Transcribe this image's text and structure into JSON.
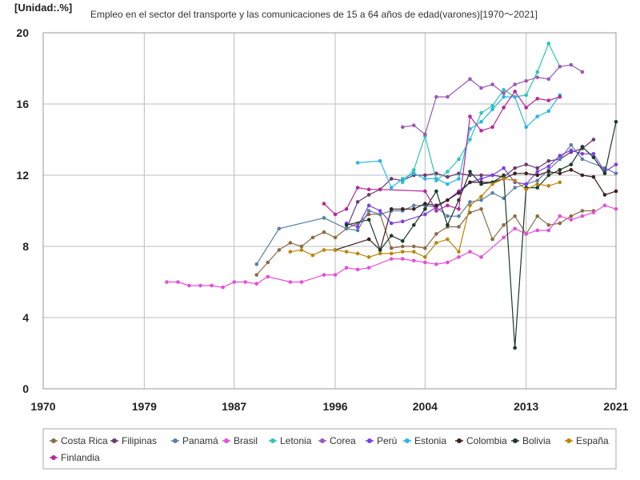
{
  "unit_label": "[Unidad:.%]",
  "chart_data": {
    "type": "line",
    "title": "Empleo en el sector del transporte y las comunicaciones de 15 a 64 años de edad(varones)[1970～2021]",
    "xlabel": "",
    "ylabel": "",
    "xlim": [
      1970,
      2021
    ],
    "ylim": [
      0,
      20
    ],
    "x_ticks": [
      1970,
      1979,
      1987,
      1996,
      2004,
      2013,
      2021
    ],
    "y_ticks": [
      0,
      4,
      8,
      12,
      16,
      20
    ],
    "grid": true,
    "legend_position": "bottom",
    "series": [
      {
        "name": "Costa Rica",
        "color": "#8b6b47",
        "points": [
          [
            1989,
            6.4
          ],
          [
            1990,
            7.1
          ],
          [
            1991,
            7.8
          ],
          [
            1992,
            8.2
          ],
          [
            1993,
            8.0
          ],
          [
            1994,
            8.5
          ],
          [
            1995,
            8.8
          ],
          [
            1996,
            8.5
          ],
          [
            1997,
            9.0
          ],
          [
            1998,
            9.3
          ],
          [
            1999,
            9.8
          ],
          [
            2000,
            9.8
          ],
          [
            2001,
            7.9
          ],
          [
            2002,
            8.0
          ],
          [
            2003,
            8.0
          ],
          [
            2004,
            7.9
          ],
          [
            2005,
            8.7
          ],
          [
            2006,
            9.1
          ],
          [
            2007,
            9.1
          ],
          [
            2008,
            9.9
          ],
          [
            2009,
            10.1
          ],
          [
            2010,
            8.4
          ],
          [
            2011,
            9.2
          ],
          [
            2012,
            9.7
          ],
          [
            2013,
            8.7
          ],
          [
            2014,
            9.7
          ],
          [
            2015,
            9.2
          ],
          [
            2016,
            9.3
          ],
          [
            2017,
            9.7
          ],
          [
            2018,
            10.0
          ],
          [
            2019,
            10.0
          ]
        ]
      },
      {
        "name": "Filipinas",
        "color": "#6b3a6b",
        "points": [
          [
            1997,
            9.0
          ],
          [
            1998,
            10.5
          ],
          [
            1999,
            10.9
          ],
          [
            2000,
            11.2
          ],
          [
            2001,
            11.8
          ],
          [
            2002,
            11.7
          ],
          [
            2003,
            12.0
          ],
          [
            2004,
            12.0
          ],
          [
            2005,
            12.1
          ],
          [
            2006,
            11.9
          ],
          [
            2007,
            12.1
          ],
          [
            2008,
            12.0
          ],
          [
            2009,
            12.0
          ],
          [
            2010,
            12.0
          ],
          [
            2011,
            11.9
          ],
          [
            2012,
            12.4
          ],
          [
            2013,
            12.6
          ],
          [
            2014,
            12.4
          ],
          [
            2015,
            12.8
          ],
          [
            2016,
            12.9
          ],
          [
            2017,
            13.3
          ],
          [
            2018,
            13.5
          ],
          [
            2019,
            14.0
          ]
        ]
      },
      {
        "name": "Panamá",
        "color": "#5b7fa6",
        "points": [
          [
            1989,
            7.0
          ],
          [
            1991,
            9.0
          ],
          [
            1995,
            9.6
          ],
          [
            1997,
            9.0
          ],
          [
            1998,
            8.9
          ],
          [
            1999,
            10.0
          ],
          [
            2000,
            9.8
          ],
          [
            2001,
            10.0
          ],
          [
            2002,
            10.0
          ],
          [
            2003,
            10.3
          ],
          [
            2004,
            10.3
          ],
          [
            2005,
            10.2
          ],
          [
            2006,
            9.7
          ],
          [
            2007,
            9.7
          ],
          [
            2008,
            10.5
          ],
          [
            2009,
            10.6
          ],
          [
            2010,
            11.0
          ],
          [
            2011,
            10.7
          ],
          [
            2012,
            11.3
          ],
          [
            2013,
            11.5
          ],
          [
            2014,
            11.7
          ],
          [
            2015,
            12.3
          ],
          [
            2016,
            12.9
          ],
          [
            2017,
            13.7
          ],
          [
            2018,
            12.9
          ],
          [
            2020,
            12.4
          ],
          [
            2021,
            12.1
          ]
        ]
      },
      {
        "name": "Brasil",
        "color": "#e64fd6",
        "points": [
          [
            1981,
            6.0
          ],
          [
            1982,
            6.0
          ],
          [
            1983,
            5.8
          ],
          [
            1984,
            5.8
          ],
          [
            1985,
            5.8
          ],
          [
            1986,
            5.7
          ],
          [
            1987,
            6.0
          ],
          [
            1988,
            6.0
          ],
          [
            1989,
            5.9
          ],
          [
            1990,
            6.3
          ],
          [
            1992,
            6.0
          ],
          [
            1993,
            6.0
          ],
          [
            1995,
            6.4
          ],
          [
            1996,
            6.4
          ],
          [
            1997,
            6.8
          ],
          [
            1998,
            6.7
          ],
          [
            1999,
            6.8
          ],
          [
            2001,
            7.3
          ],
          [
            2002,
            7.3
          ],
          [
            2003,
            7.2
          ],
          [
            2004,
            7.1
          ],
          [
            2005,
            7.0
          ],
          [
            2006,
            7.1
          ],
          [
            2007,
            7.4
          ],
          [
            2008,
            7.7
          ],
          [
            2009,
            7.4
          ],
          [
            2011,
            8.5
          ],
          [
            2012,
            9.0
          ],
          [
            2013,
            8.7
          ],
          [
            2014,
            8.9
          ],
          [
            2015,
            8.9
          ],
          [
            2016,
            9.7
          ],
          [
            2017,
            9.5
          ],
          [
            2018,
            9.7
          ],
          [
            2019,
            9.9
          ],
          [
            2020,
            10.3
          ],
          [
            2021,
            10.1
          ]
        ]
      },
      {
        "name": "Letonia",
        "color": "#2ec4b6",
        "points": [
          [
            2002,
            11.6
          ],
          [
            2003,
            12.3
          ],
          [
            2004,
            14.2
          ],
          [
            2005,
            11.7
          ],
          [
            2006,
            12.2
          ],
          [
            2007,
            12.9
          ],
          [
            2008,
            14.0
          ],
          [
            2009,
            15.5
          ],
          [
            2010,
            15.9
          ],
          [
            2011,
            16.8
          ],
          [
            2012,
            16.4
          ],
          [
            2013,
            16.5
          ],
          [
            2014,
            17.8
          ],
          [
            2015,
            19.4
          ],
          [
            2016,
            18.1
          ]
        ]
      },
      {
        "name": "Corea",
        "color": "#9b59b6",
        "points": [
          [
            2002,
            14.7
          ],
          [
            2003,
            14.8
          ],
          [
            2004,
            14.3
          ],
          [
            2005,
            16.4
          ],
          [
            2006,
            16.4
          ],
          [
            2008,
            17.4
          ],
          [
            2009,
            16.9
          ],
          [
            2010,
            17.1
          ],
          [
            2011,
            16.6
          ],
          [
            2012,
            17.1
          ],
          [
            2013,
            17.3
          ],
          [
            2014,
            17.5
          ],
          [
            2015,
            17.4
          ],
          [
            2016,
            18.1
          ],
          [
            2017,
            18.2
          ],
          [
            2018,
            17.8
          ]
        ]
      },
      {
        "name": "Perú",
        "color": "#7b3fe4",
        "points": [
          [
            1997,
            9.3
          ],
          [
            1998,
            9.1
          ],
          [
            1999,
            10.3
          ],
          [
            2000,
            10.0
          ],
          [
            2001,
            9.3
          ],
          [
            2002,
            9.4
          ],
          [
            2004,
            9.8
          ],
          [
            2005,
            10.2
          ],
          [
            2006,
            10.6
          ],
          [
            2007,
            11.1
          ],
          [
            2008,
            11.6
          ],
          [
            2009,
            11.8
          ],
          [
            2010,
            12.0
          ],
          [
            2011,
            12.4
          ],
          [
            2012,
            11.6
          ],
          [
            2013,
            11.5
          ],
          [
            2014,
            12.2
          ],
          [
            2015,
            12.5
          ],
          [
            2016,
            13.1
          ],
          [
            2017,
            13.4
          ],
          [
            2018,
            13.2
          ],
          [
            2019,
            13.2
          ],
          [
            2020,
            12.2
          ],
          [
            2021,
            12.6
          ]
        ]
      },
      {
        "name": "Estonia",
        "color": "#29b6e6",
        "points": [
          [
            1998,
            12.7
          ],
          [
            2000,
            12.8
          ],
          [
            2001,
            11.3
          ],
          [
            2002,
            11.8
          ],
          [
            2003,
            12.1
          ],
          [
            2004,
            11.8
          ],
          [
            2005,
            11.8
          ],
          [
            2006,
            11.5
          ],
          [
            2007,
            11.8
          ],
          [
            2008,
            14.6
          ],
          [
            2009,
            15.0
          ],
          [
            2010,
            15.7
          ],
          [
            2011,
            16.4
          ],
          [
            2012,
            16.4
          ],
          [
            2013,
            14.7
          ],
          [
            2014,
            15.3
          ],
          [
            2015,
            15.6
          ],
          [
            2016,
            16.5
          ]
        ]
      },
      {
        "name": "Colombia",
        "color": "#3d1f1f",
        "points": [
          [
            1996,
            7.8
          ],
          [
            1999,
            8.4
          ],
          [
            2000,
            7.8
          ],
          [
            2001,
            10.1
          ],
          [
            2002,
            10.1
          ],
          [
            2003,
            10.1
          ],
          [
            2004,
            10.4
          ],
          [
            2005,
            10.3
          ],
          [
            2006,
            10.6
          ],
          [
            2007,
            11.0
          ],
          [
            2008,
            11.6
          ],
          [
            2009,
            11.6
          ],
          [
            2010,
            11.6
          ],
          [
            2011,
            11.8
          ],
          [
            2012,
            12.1
          ],
          [
            2013,
            12.1
          ],
          [
            2014,
            12.0
          ],
          [
            2015,
            12.2
          ],
          [
            2016,
            12.1
          ],
          [
            2017,
            12.3
          ],
          [
            2018,
            12.0
          ],
          [
            2019,
            11.9
          ],
          [
            2020,
            10.9
          ],
          [
            2021,
            11.1
          ]
        ]
      },
      {
        "name": "Bolivia",
        "color": "#1a3a2a",
        "points": [
          [
            1997,
            9.2
          ],
          [
            1999,
            9.5
          ],
          [
            2000,
            7.8
          ],
          [
            2001,
            8.6
          ],
          [
            2002,
            8.3
          ],
          [
            2003,
            9.2
          ],
          [
            2004,
            10.1
          ],
          [
            2005,
            11.1
          ],
          [
            2006,
            9.2
          ],
          [
            2007,
            10.6
          ],
          [
            2008,
            12.2
          ],
          [
            2009,
            11.5
          ],
          [
            2010,
            11.6
          ],
          [
            2011,
            12.0
          ],
          [
            2012,
            2.3
          ],
          [
            2013,
            11.3
          ],
          [
            2014,
            11.3
          ],
          [
            2015,
            12.0
          ],
          [
            2016,
            12.3
          ],
          [
            2017,
            12.6
          ],
          [
            2018,
            13.6
          ],
          [
            2019,
            13.0
          ],
          [
            2020,
            12.1
          ],
          [
            2021,
            15.0
          ]
        ]
      },
      {
        "name": "España",
        "color": "#b8860b",
        "points": [
          [
            1992,
            7.7
          ],
          [
            1993,
            7.8
          ],
          [
            1994,
            7.5
          ],
          [
            1995,
            7.8
          ],
          [
            1996,
            7.8
          ],
          [
            1997,
            7.7
          ],
          [
            1998,
            7.6
          ],
          [
            1999,
            7.4
          ],
          [
            2000,
            7.6
          ],
          [
            2001,
            7.6
          ],
          [
            2002,
            7.7
          ],
          [
            2003,
            7.7
          ],
          [
            2004,
            7.4
          ],
          [
            2005,
            8.2
          ],
          [
            2006,
            8.4
          ],
          [
            2007,
            7.7
          ],
          [
            2008,
            10.3
          ],
          [
            2009,
            10.8
          ],
          [
            2010,
            11.5
          ],
          [
            2011,
            11.8
          ],
          [
            2012,
            11.7
          ],
          [
            2013,
            11.2
          ],
          [
            2014,
            11.5
          ],
          [
            2015,
            11.4
          ],
          [
            2016,
            11.6
          ]
        ]
      },
      {
        "name": "Finlandia",
        "color": "#b5289a",
        "points": [
          [
            1995,
            10.4
          ],
          [
            1996,
            9.8
          ],
          [
            1997,
            10.1
          ],
          [
            1998,
            11.3
          ],
          [
            1999,
            11.2
          ],
          [
            2000,
            11.2
          ],
          [
            2004,
            11.1
          ],
          [
            2005,
            10.0
          ],
          [
            2006,
            10.3
          ],
          [
            2007,
            10.1
          ],
          [
            2008,
            15.3
          ],
          [
            2009,
            14.5
          ],
          [
            2010,
            14.7
          ],
          [
            2011,
            15.8
          ],
          [
            2012,
            16.7
          ],
          [
            2013,
            15.8
          ],
          [
            2014,
            16.3
          ],
          [
            2015,
            16.2
          ],
          [
            2016,
            16.4
          ]
        ]
      }
    ]
  }
}
